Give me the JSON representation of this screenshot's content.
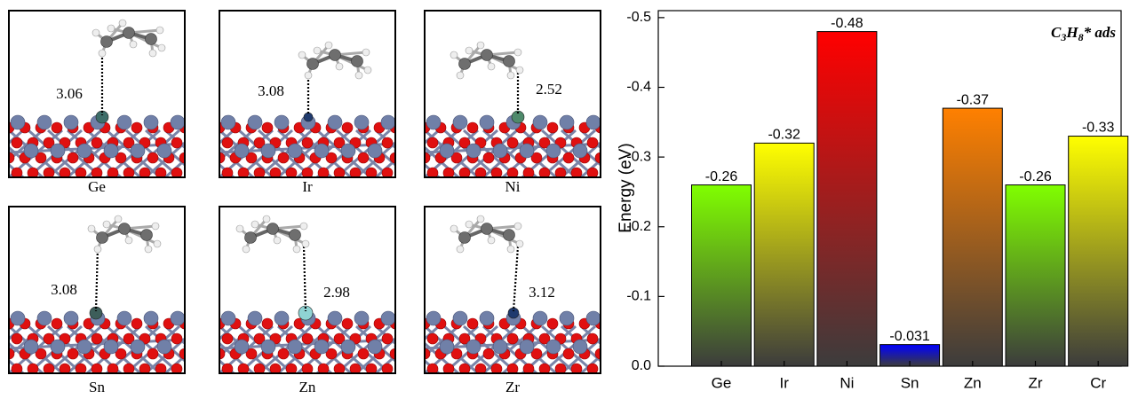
{
  "panels": [
    {
      "label": "Ge",
      "distance": 3.06
    },
    {
      "label": "Ir",
      "distance": 3.08
    },
    {
      "label": "Ni",
      "distance": 2.52
    },
    {
      "label": "Sn",
      "distance": 3.08
    },
    {
      "label": "Zn",
      "distance": 2.98
    },
    {
      "label": "Zr",
      "distance": 3.12
    }
  ],
  "chart_data": {
    "type": "bar",
    "annotation": [
      "C",
      "3",
      "H",
      "8",
      "* ads"
    ],
    "y_label": "Energy (eV)",
    "categories": [
      "Ge",
      "Ir",
      "Ni",
      "Sn",
      "Zn",
      "Zr",
      "Cr"
    ],
    "values": [
      -0.26,
      -0.32,
      -0.48,
      -0.031,
      -0.37,
      -0.26,
      -0.33
    ],
    "colors": [
      "#80ff00",
      "#ffff00",
      "#ff0000",
      "#0000ff",
      "#ff8000",
      "#80ff00",
      "#ffff00"
    ],
    "ylim": [
      0,
      -0.51
    ],
    "yticks": [
      {
        "value": 0,
        "label": "0.0"
      },
      -0.1,
      -0.2,
      -0.3,
      -0.4,
      -0.5
    ]
  }
}
